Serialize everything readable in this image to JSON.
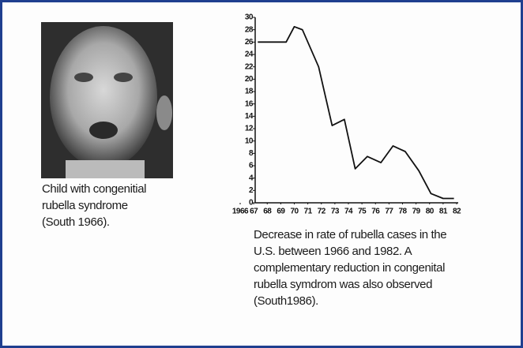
{
  "photo": {
    "caption": [
      "Child with congenitial",
      "rubella syndrome",
      "(South 1966)."
    ]
  },
  "chart_data": {
    "type": "line",
    "caption": [
      "Decrease in rate of rubella cases in the",
      "U.S. between 1966 and 1982. A",
      "complementary reduction in congenital",
      "rubella symdrom was also observed",
      "(South1986)."
    ],
    "x": [
      1967.3,
      1969.4,
      1970,
      1970.6,
      1971.8,
      1972.8,
      1973.7,
      1974.5,
      1975.4,
      1976.4,
      1977.3,
      1978.2,
      1979.2,
      1980.1,
      1981,
      1981.8
    ],
    "values": [
      26,
      26,
      28.5,
      28,
      22,
      12.5,
      13.5,
      5.5,
      7.5,
      6.5,
      9.2,
      8.3,
      5.2,
      1.5,
      0.7,
      0.7
    ],
    "color": "#111111",
    "xlim": [
      1966,
      1982
    ],
    "xticks": [
      1966,
      {
        "value": 1967,
        "label": "67"
      },
      {
        "value": 1968,
        "label": "68"
      },
      {
        "value": 1969,
        "label": "69"
      },
      {
        "value": 1970,
        "label": "70"
      },
      {
        "value": 1971,
        "label": "71"
      },
      {
        "value": 1972,
        "label": "72"
      },
      {
        "value": 1973,
        "label": "73"
      },
      {
        "value": 1974,
        "label": "74"
      },
      {
        "value": 1975,
        "label": "75"
      },
      {
        "value": 1976,
        "label": "76"
      },
      {
        "value": 1977,
        "label": "77"
      },
      {
        "value": 1978,
        "label": "78"
      },
      {
        "value": 1979,
        "label": "79"
      },
      {
        "value": 1980,
        "label": "80"
      },
      {
        "value": 1981,
        "label": "81"
      },
      {
        "value": 1982,
        "label": "82"
      }
    ],
    "ylim": [
      0,
      30
    ],
    "yticks": [
      0,
      2,
      4,
      6,
      8,
      10,
      12,
      14,
      16,
      18,
      20,
      22,
      24,
      26,
      28,
      30
    ],
    "grid": false
  }
}
